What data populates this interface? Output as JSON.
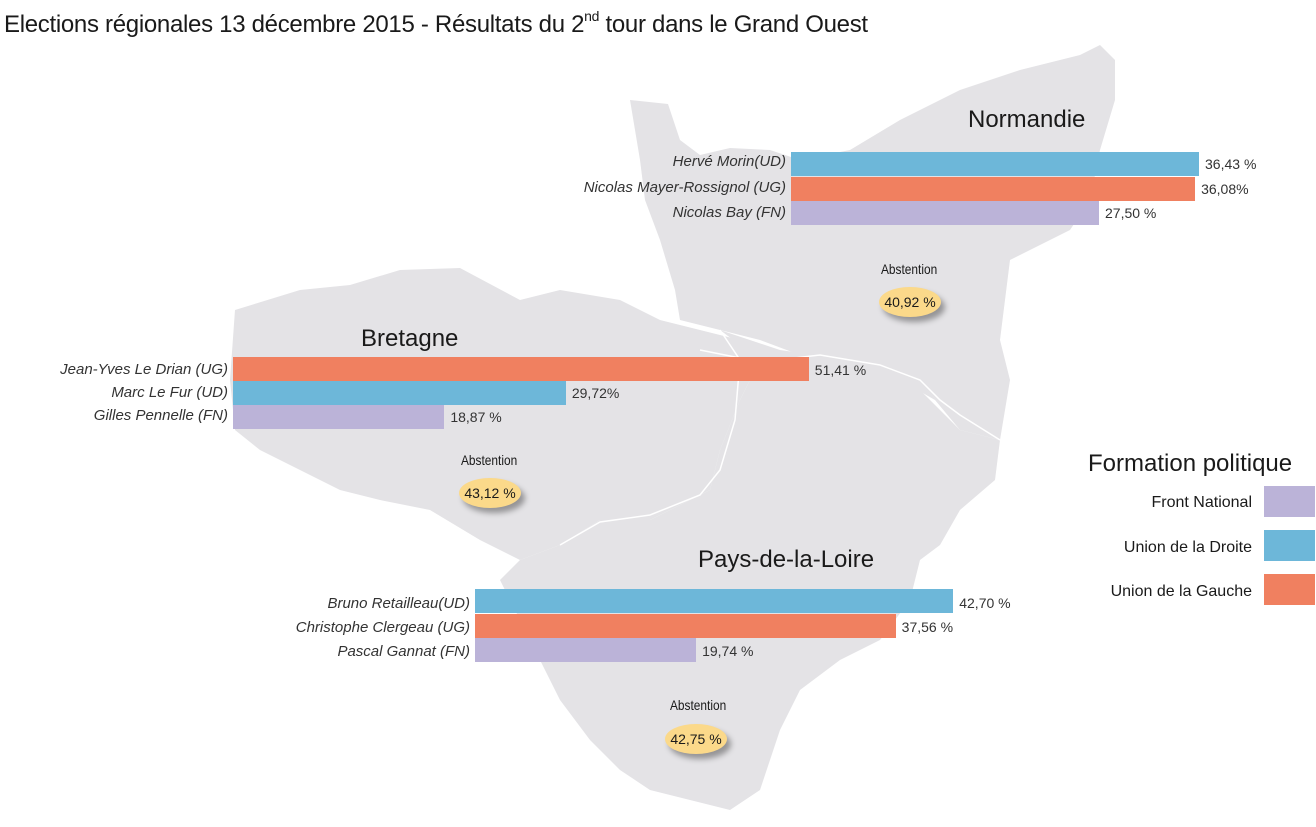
{
  "title": {
    "main": "Elections régionales 13 décembre 2015 - Résultats du 2",
    "sup": "nd",
    "rest": " tour dans le Grand Ouest"
  },
  "colors": {
    "fn": "#bbb3d8",
    "ud": "#6db7d9",
    "ug": "#f08060",
    "map": "#e4e3e6",
    "abstention": "#fbd98a"
  },
  "legend": {
    "title": "Formation politique",
    "items": [
      {
        "label": "Front National",
        "party": "fn"
      },
      {
        "label": "Union de la Droite",
        "party": "ud"
      },
      {
        "label": "Union de la Gauche",
        "party": "ug"
      }
    ]
  },
  "chart_data": [
    {
      "type": "bar",
      "title": "Normandie",
      "series": [
        {
          "name": "Hervé Morin(UD)",
          "party": "ud",
          "value": 36.43,
          "label": "36,43 %"
        },
        {
          "name": "Nicolas Mayer-Rossignol (UG)",
          "party": "ug",
          "value": 36.08,
          "label": "36,08%"
        },
        {
          "name": "Nicolas Bay (FN)",
          "party": "fn",
          "value": 27.5,
          "label": "27,50 %"
        }
      ],
      "abstention_label": "Abstention",
      "abstention_value": 40.92,
      "abstention_text": "40,92 %"
    },
    {
      "type": "bar",
      "title": "Bretagne",
      "series": [
        {
          "name": "Jean-Yves Le Drian (UG)",
          "party": "ug",
          "value": 51.41,
          "label": "51,41 %"
        },
        {
          "name": "Marc Le Fur (UD)",
          "party": "ud",
          "value": 29.72,
          "label": "29,72%"
        },
        {
          "name": "Gilles Pennelle (FN)",
          "party": "fn",
          "value": 18.87,
          "label": "18,87 %"
        }
      ],
      "abstention_label": "Abstention",
      "abstention_value": 43.12,
      "abstention_text": "43,12 %"
    },
    {
      "type": "bar",
      "title": "Pays-de-la-Loire",
      "series": [
        {
          "name": "Bruno Retailleau(UD)",
          "party": "ud",
          "value": 42.7,
          "label": "42,70 %"
        },
        {
          "name": "Christophe Clergeau (UG)",
          "party": "ug",
          "value": 37.56,
          "label": "37,56 %"
        },
        {
          "name": "Pascal Gannat (FN)",
          "party": "fn",
          "value": 19.74,
          "label": "19,74 %"
        }
      ],
      "abstention_label": "Abstention",
      "abstention_value": 42.75,
      "abstention_text": "42,75 %"
    }
  ]
}
